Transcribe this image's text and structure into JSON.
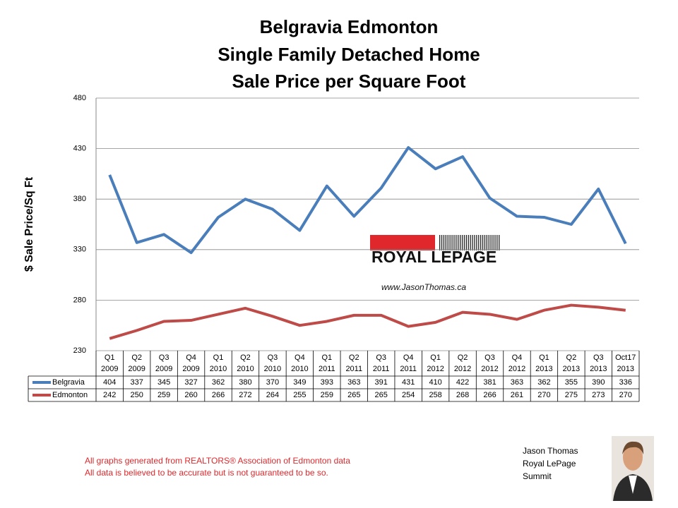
{
  "chart_data": {
    "type": "line",
    "title": "Belgravia Edmonton",
    "subtitle": [
      "Single Family Detached Home",
      "Sale Price per Square Foot"
    ],
    "y_label": "$ Sale Price/Sq Ft",
    "categories": [
      "Q1 2009",
      "Q2 2009",
      "Q3 2009",
      "Q4 2009",
      "Q1 2010",
      "Q2 2010",
      "Q3 2010",
      "Q4 2010",
      "Q1 2011",
      "Q2 2011",
      "Q3 2011",
      "Q4 2011",
      "Q1 2012",
      "Q2 2012",
      "Q3 2012",
      "Q4 2012",
      "Q1 2013",
      "Q2 2013",
      "Q3 2013",
      "Oct17 2013"
    ],
    "series": [
      {
        "name": "Belgravia",
        "color": "#4a7ebb",
        "values": [
          404,
          337,
          345,
          327,
          362,
          380,
          370,
          349,
          393,
          363,
          391,
          431,
          410,
          422,
          381,
          363,
          362,
          355,
          390,
          336
        ]
      },
      {
        "name": "Edmonton",
        "color": "#be4b48",
        "values": [
          242,
          250,
          259,
          260,
          266,
          272,
          264,
          255,
          259,
          265,
          265,
          254,
          258,
          268,
          266,
          261,
          270,
          275,
          273,
          270
        ]
      }
    ],
    "ylim": [
      230,
      480
    ],
    "yticks": [
      230,
      280,
      330,
      380,
      430,
      480
    ],
    "grid": true,
    "annotations": [
      "ROYAL LEPAGE",
      "www.JasonThomas.ca"
    ],
    "footnotes": [
      "All graphs generated from REALTORS® Association of Edmonton data",
      "All data is believed to be accurate but is not guaranteed to be so."
    ],
    "author": [
      "Jason Thomas",
      "Royal LePage",
      "Summit"
    ]
  }
}
